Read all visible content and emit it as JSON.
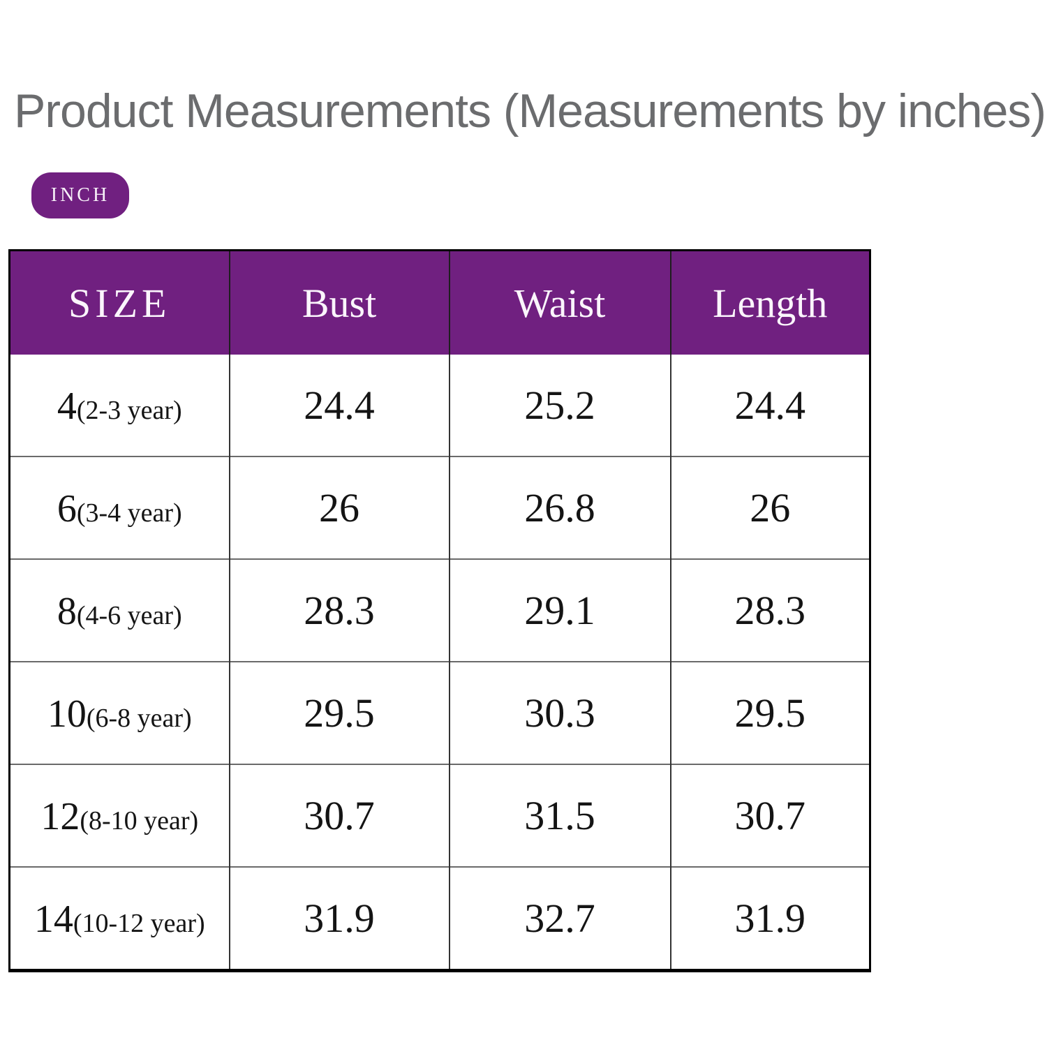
{
  "title": "Product Measurements (Measurements by inches)",
  "unit_badge": {
    "label": "INCH"
  },
  "table": {
    "headers": [
      "SIZE",
      "Bust",
      "Waist",
      "Length"
    ],
    "rows": [
      {
        "size_num": "4",
        "age_range": "(2-3 year)",
        "bust": "24.4",
        "waist": "25.2",
        "length": "24.4"
      },
      {
        "size_num": "6",
        "age_range": "(3-4 year)",
        "bust": "26",
        "waist": "26.8",
        "length": "26"
      },
      {
        "size_num": "8",
        "age_range": "(4-6 year)",
        "bust": "28.3",
        "waist": "29.1",
        "length": "28.3"
      },
      {
        "size_num": "10",
        "age_range": "(6-8 year)",
        "bust": "29.5",
        "waist": "30.3",
        "length": "29.5"
      },
      {
        "size_num": "12",
        "age_range": "(8-10 year)",
        "bust": "30.7",
        "waist": "31.5",
        "length": "30.7"
      },
      {
        "size_num": "14",
        "age_range": "(10-12 year)",
        "bust": "31.9",
        "waist": "32.7",
        "length": "31.9"
      }
    ]
  },
  "colors": {
    "accent_purple": "#702080",
    "title_gray": "#6B6C6E"
  }
}
